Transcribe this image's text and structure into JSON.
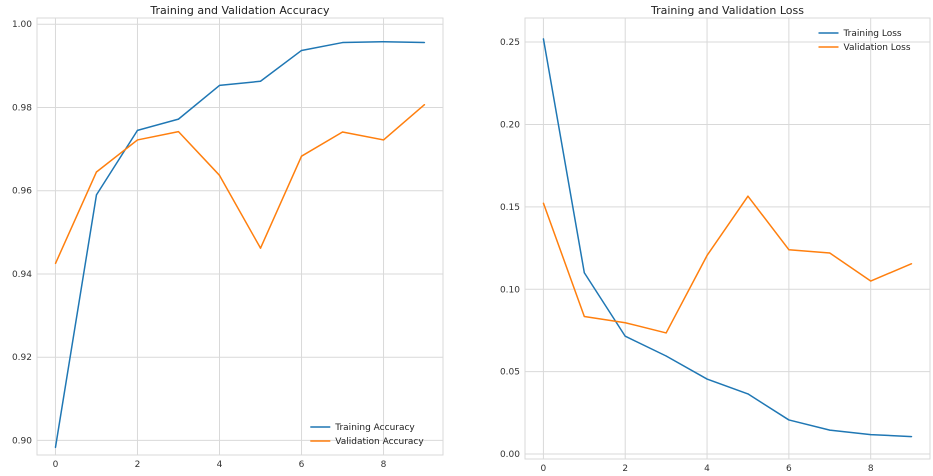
{
  "chart_data": [
    {
      "type": "line",
      "title": "Training and Validation Accuracy",
      "xlabel": "",
      "ylabel": "",
      "xlim": [
        -0.45,
        9.45
      ],
      "ylim": [
        0.8965,
        1.0015
      ],
      "xticks": [
        0,
        2,
        4,
        6,
        8
      ],
      "xtick_labels": [
        "0",
        "2",
        "4",
        "6",
        "8"
      ],
      "yticks": [
        0.9,
        0.92,
        0.94,
        0.96,
        0.98,
        1.0
      ],
      "ytick_labels": [
        "0.90",
        "0.92",
        "0.94",
        "0.96",
        "0.98",
        "1.00"
      ],
      "grid": true,
      "legend_position": "lower-right",
      "x": [
        0,
        1,
        2,
        3,
        4,
        5,
        6,
        7,
        8,
        9
      ],
      "series": [
        {
          "name": "Training Accuracy",
          "color": "#1f77b4",
          "values": [
            0.8983,
            0.959,
            0.9745,
            0.9772,
            0.9853,
            0.9863,
            0.9937,
            0.9956,
            0.9958,
            0.9956
          ]
        },
        {
          "name": "Validation Accuracy",
          "color": "#ff7f0e",
          "values": [
            0.9425,
            0.9645,
            0.9722,
            0.9742,
            0.9637,
            0.9462,
            0.9683,
            0.9741,
            0.9722,
            0.9807
          ]
        }
      ]
    },
    {
      "type": "line",
      "title": "Training and Validation Loss",
      "xlabel": "",
      "ylabel": "",
      "xlim": [
        -0.45,
        9.45
      ],
      "ylim": [
        -0.003,
        0.2646
      ],
      "xticks": [
        0,
        2,
        4,
        6,
        8
      ],
      "xtick_labels": [
        "0",
        "2",
        "4",
        "6",
        "8"
      ],
      "yticks": [
        0.0,
        0.05,
        0.1,
        0.15,
        0.2,
        0.25
      ],
      "ytick_labels": [
        "0.00",
        "0.05",
        "0.10",
        "0.15",
        "0.20",
        "0.25"
      ],
      "grid": true,
      "legend_position": "upper-right",
      "x": [
        0,
        1,
        2,
        3,
        4,
        5,
        6,
        7,
        8,
        9
      ],
      "series": [
        {
          "name": "Training Loss",
          "color": "#1f77b4",
          "values": [
            0.252,
            0.11,
            0.0715,
            0.0595,
            0.0455,
            0.0365,
            0.0207,
            0.0145,
            0.0118,
            0.0106
          ]
        },
        {
          "name": "Validation Loss",
          "color": "#ff7f0e",
          "values": [
            0.1523,
            0.0835,
            0.0797,
            0.0735,
            0.1205,
            0.1565,
            0.124,
            0.122,
            0.105,
            0.1155
          ]
        }
      ]
    }
  ]
}
